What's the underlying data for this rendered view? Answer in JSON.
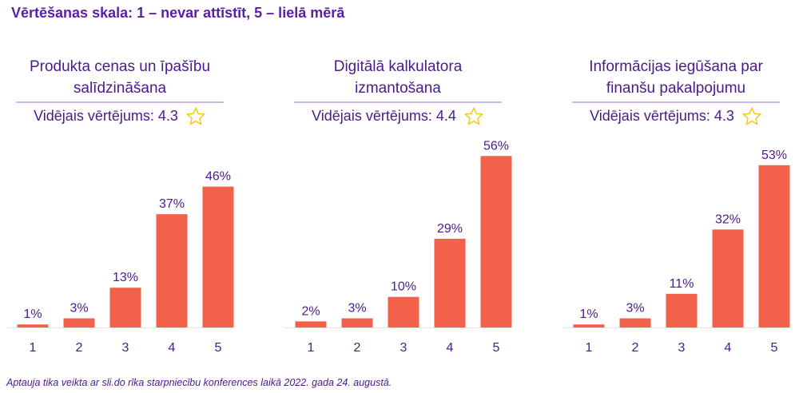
{
  "scale_title": "Vērtēšanas skala: 1 – nevar attīstīt, 5 – lielā mērā",
  "footnote": "Aptauja tika veikta ar sli.do rīka starpniecību konferences laikā 2022. gada 24. augustā.",
  "colors": {
    "bar": "#f2614a",
    "text": "#4a1a8c",
    "title": "#5b1fa6",
    "rule": "#c9b7e6",
    "star": "#f5c518"
  },
  "chart_data": [
    {
      "type": "bar",
      "title": "Produkta cenas un īpašību salīdzināšana",
      "title_lines": [
        "Produkta cenas un īpašību",
        "salīdzināšana"
      ],
      "average_label": "Vidējais vērtējums: 4.3",
      "categories": [
        "1",
        "2",
        "3",
        "4",
        "5"
      ],
      "values": [
        1,
        3,
        13,
        37,
        46
      ],
      "value_labels": [
        "1%",
        "3%",
        "13%",
        "37%",
        "46%"
      ],
      "ylim": [
        0,
        60
      ]
    },
    {
      "type": "bar",
      "title": "Digitālā kalkulatora izmantošana",
      "title_lines": [
        "Digitālā kalkulatora",
        "izmantošana"
      ],
      "average_label": "Vidējais vērtējums: 4.4",
      "categories": [
        "1",
        "2",
        "3",
        "4",
        "5"
      ],
      "values": [
        2,
        3,
        10,
        29,
        56
      ],
      "value_labels": [
        "2%",
        "3%",
        "10%",
        "29%",
        "56%"
      ],
      "ylim": [
        0,
        60
      ]
    },
    {
      "type": "bar",
      "title": "Informācijas iegūšana par finanšu pakalpojumu",
      "title_lines": [
        "Informācijas iegūšana par",
        "finanšu pakalpojumu"
      ],
      "average_label": "Vidējais vērtējums: 4.3",
      "categories": [
        "1",
        "2",
        "3",
        "4",
        "5"
      ],
      "values": [
        1,
        3,
        11,
        32,
        53
      ],
      "value_labels": [
        "1%",
        "3%",
        "11%",
        "32%",
        "53%"
      ],
      "ylim": [
        0,
        60
      ]
    }
  ]
}
